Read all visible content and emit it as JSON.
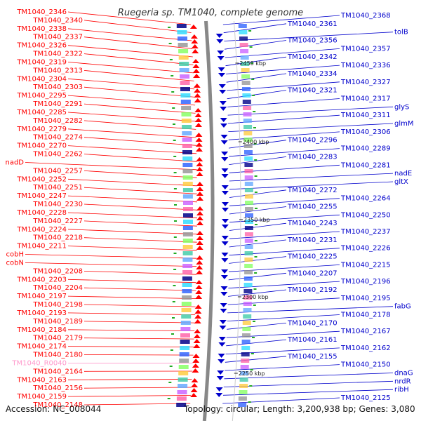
{
  "title": "Ruegeria sp. TM1040, complete genome",
  "footer": {
    "accession": "Accession: NC_008044",
    "summary": "Topology: circular; Length: 3,200,938 bp; Genes: 3,080"
  },
  "scale_labels": [
    "2450 kbp",
    "2400 kbp",
    "2350 kbp",
    "2300 kbp",
    "2250 kbp"
  ],
  "colors": {
    "forward_gene": "#ff0000",
    "reverse_gene": "#0000cc",
    "rna_gene": "#ff99cc",
    "backbone": "#888888"
  },
  "forward_labels": [
    "TM1040_2346",
    "TM1040_2340",
    "TM1040_2338",
    "TM1040_2337",
    "TM1040_2326",
    "TM1040_2322",
    "TM1040_2319",
    "TM1040_2313",
    "TM1040_2304",
    "TM1040_2303",
    "TM1040_2295",
    "TM1040_2291",
    "TM1040_2285",
    "TM1040_2282",
    "TM1040_2279",
    "TM1040_2274",
    "TM1040_2270",
    "TM1040_2262",
    "nadD",
    "TM1040_2257",
    "TM1040_2252",
    "TM1040_2251",
    "TM1040_2247",
    "TM1040_2230",
    "TM1040_2228",
    "TM1040_2227",
    "TM1040_2224",
    "TM1040_2218",
    "TM1040_2211",
    "cobH",
    "cobN",
    "TM1040_2208",
    "TM1040_2203",
    "TM1040_2204",
    "TM1040_2197",
    "TM1040_2198",
    "TM1040_2193",
    "TM1040_2189",
    "TM1040_2184",
    "TM1040_2179",
    "TM1040_2174",
    "TM1040_2180",
    "TM1040_R0040",
    "TM1040_2164",
    "TM1040_2163",
    "TM1040_2156",
    "TM1040_2159",
    "TM1040_2148"
  ],
  "reverse_labels": [
    "TM1040_2368",
    "TM1040_2361",
    "tolB",
    "TM1040_2356",
    "TM1040_2357",
    "TM1040_2342",
    "TM1040_2336",
    "TM1040_2334",
    "TM1040_2327",
    "TM1040_2321",
    "TM1040_2317",
    "glyS",
    "TM1040_2311",
    "glmM",
    "TM1040_2306",
    "TM1040_2296",
    "TM1040_2289",
    "TM1040_2283",
    "TM1040_2281",
    "nadE",
    "gltX",
    "TM1040_2272",
    "TM1040_2264",
    "TM1040_2255",
    "TM1040_2250",
    "TM1040_2243",
    "TM1040_2237",
    "TM1040_2231",
    "TM1040_2226",
    "TM1040_2225",
    "TM1040_2215",
    "TM1040_2207",
    "TM1040_2196",
    "TM1040_2192",
    "TM1040_2195",
    "fabG",
    "TM1040_2178",
    "TM1040_2170",
    "TM1040_2167",
    "TM1040_2161",
    "TM1040_2162",
    "TM1040_2155",
    "TM1040_2150",
    "dnaG",
    "nrdR",
    "ribH",
    "TM1040_2125"
  ]
}
